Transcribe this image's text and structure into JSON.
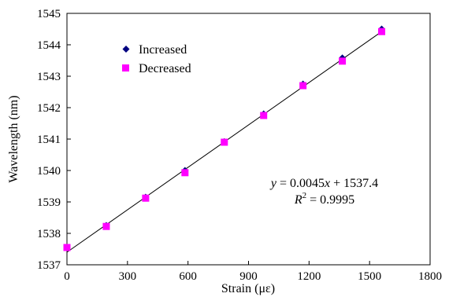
{
  "chart_data": {
    "type": "scatter",
    "xlabel": "Strain (με)",
    "ylabel": "Wavelength (nm)",
    "xlim": [
      0,
      1800
    ],
    "ylim": [
      1537,
      1545
    ],
    "xticks": [
      0,
      300,
      600,
      900,
      1200,
      1500,
      1800
    ],
    "yticks": [
      1537,
      1538,
      1539,
      1540,
      1541,
      1542,
      1543,
      1544,
      1545
    ],
    "grid": false,
    "legend_position": "top-left",
    "series": [
      {
        "name": "Increased",
        "marker": "diamond",
        "color": "#000080",
        "x": [
          0,
          195,
          390,
          585,
          780,
          975,
          1170,
          1365,
          1560
        ],
        "y": [
          1537.55,
          1538.25,
          1539.15,
          1540.0,
          1540.92,
          1541.8,
          1542.75,
          1543.58,
          1544.5
        ]
      },
      {
        "name": "Decreased",
        "marker": "square",
        "color": "#ff00ff",
        "x": [
          0,
          195,
          390,
          585,
          780,
          975,
          1170,
          1365,
          1560
        ],
        "y": [
          1537.55,
          1538.22,
          1539.12,
          1539.93,
          1540.9,
          1541.75,
          1542.7,
          1543.48,
          1544.42
        ]
      }
    ],
    "fit_line": {
      "color": "#000000",
      "slope": 0.0045,
      "intercept": 1537.4,
      "x_range": [
        0,
        1560
      ]
    },
    "annotation": {
      "line1_y": "y",
      "line1_rest": " = 0.0045",
      "line1_x": "x",
      "line1_tail": " + 1537.4",
      "line2_r": "R",
      "line2_sup": "2",
      "line2_rest": " = 0.9995"
    }
  }
}
